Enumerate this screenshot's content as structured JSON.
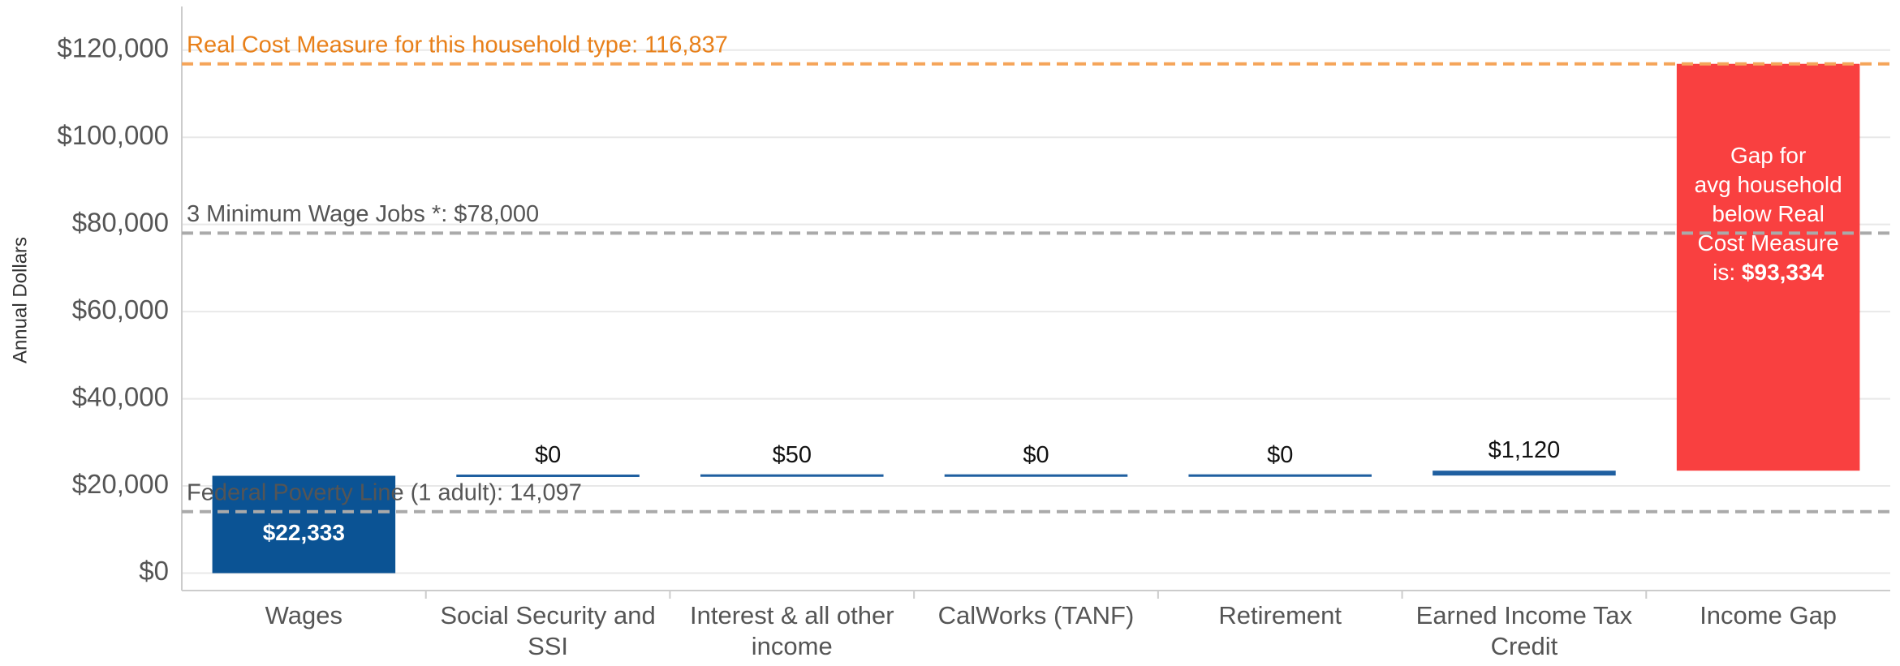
{
  "chart_data": {
    "type": "waterfall",
    "y_axis_label": "Annual Dollars",
    "categories": [
      "Wages",
      "Social Security and SSI",
      "Interest & all other income",
      "CalWorks (TANF)",
      "Retirement",
      "Earned Income Tax Credit",
      "Income Gap"
    ],
    "values": [
      22333,
      0,
      50,
      0,
      0,
      1120,
      93334
    ],
    "value_labels": [
      "$22,333",
      "$0",
      "$50",
      "$0",
      "$0",
      "$1,120",
      "$93,334"
    ],
    "colors": [
      "#0b5394",
      "#1f5fa0",
      "#1f5fa0",
      "#1f5fa0",
      "#1f5fa0",
      "#1f5fa0",
      "#f94040"
    ],
    "gap_annotation": [
      "Gap for",
      "avg household",
      "below  Real",
      "Cost Measure",
      "is:"
    ],
    "reference_lines": [
      {
        "label": "Real Cost Measure for this household type: 116,837",
        "value": 116837,
        "color": "#f5a55a",
        "label_color": "#e8801a"
      },
      {
        "label": "3 Minimum Wage Jobs *: $78,000",
        "value": 78000,
        "color": "#aaaaaa",
        "label_color": "#555555"
      },
      {
        "label": "Federal Poverty Line (1 adult): 14,097",
        "value": 14097,
        "color": "#aaaaaa",
        "label_color": "#555555"
      }
    ],
    "ylim": [
      -4000,
      130000
    ],
    "yticks": [
      {
        "value": 0,
        "label": "$0"
      },
      {
        "value": 20000,
        "label": "$20,000"
      },
      {
        "value": 40000,
        "label": "$40,000"
      },
      {
        "value": 60000,
        "label": "$60,000"
      },
      {
        "value": 80000,
        "label": "$80,000"
      },
      {
        "value": 100000,
        "label": "$100,000"
      },
      {
        "value": 120000,
        "label": "$120,000"
      }
    ],
    "grid": true
  }
}
